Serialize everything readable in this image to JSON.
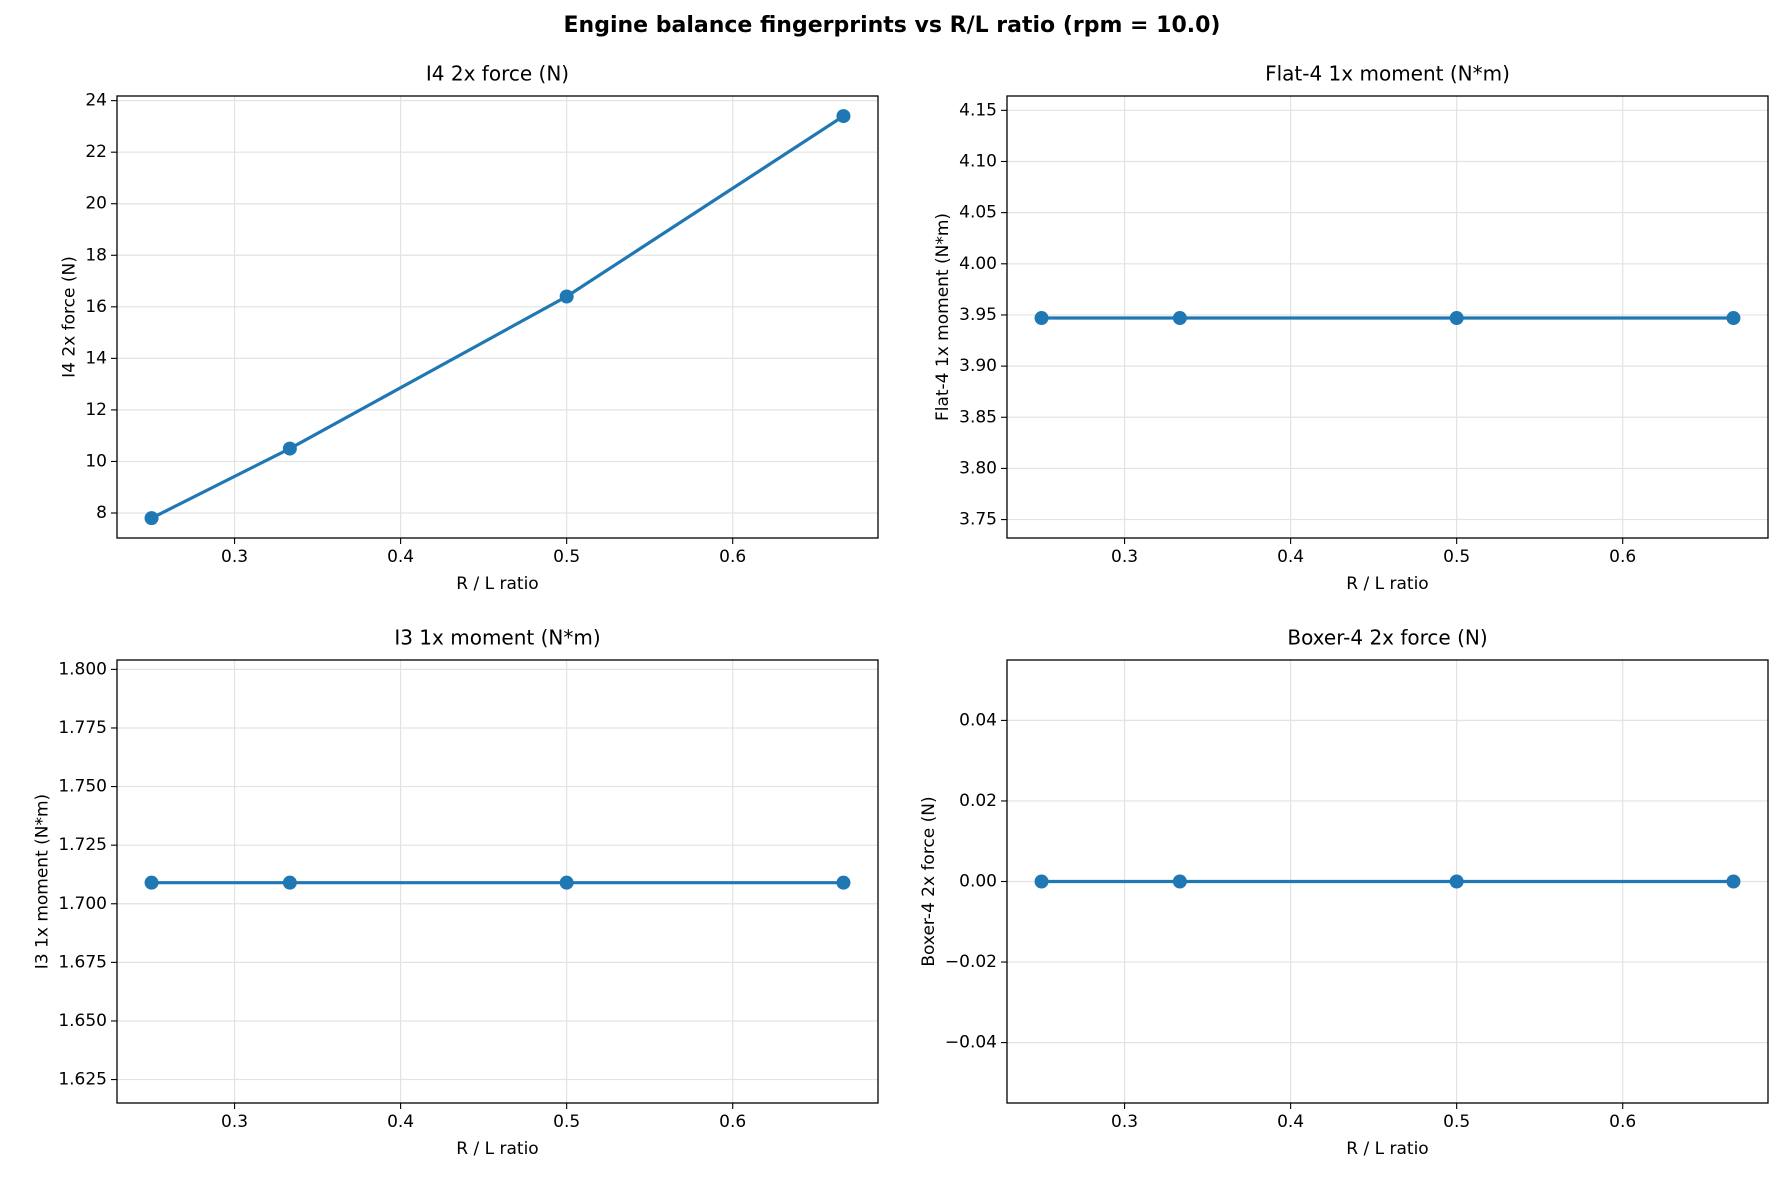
{
  "title": "Engine balance fingerprints vs R/L ratio (rpm = 10.0)",
  "chart_data": [
    {
      "type": "line",
      "title": "I4 2x force (N)",
      "xlabel": "R / L ratio",
      "ylabel": "I4 2x force (N)",
      "x": [
        0.25,
        0.3333,
        0.5,
        0.6667
      ],
      "values": [
        7.8,
        10.5,
        16.4,
        23.4
      ],
      "color": "#1f77b4",
      "xlim": [
        0.2292,
        0.6875
      ],
      "xticks": [
        0.3,
        0.4,
        0.5,
        0.6
      ],
      "ylim": [
        7.03,
        24.18
      ],
      "yticks": [
        8,
        10,
        12,
        14,
        16,
        18,
        20,
        22,
        24
      ],
      "grid": true
    },
    {
      "type": "line",
      "title": "Flat-4 1x moment (N*m)",
      "xlabel": "R / L ratio",
      "ylabel": "Flat-4 1x moment (N*m)",
      "x": [
        0.25,
        0.3333,
        0.5,
        0.6667
      ],
      "values": [
        3.947,
        3.947,
        3.947,
        3.947
      ],
      "color": "#1f77b4",
      "xlim": [
        0.2292,
        0.6875
      ],
      "xticks": [
        0.3,
        0.4,
        0.5,
        0.6
      ],
      "ylim": [
        3.732,
        4.164
      ],
      "yticks": [
        3.75,
        {
          "value": 3.8,
          "label": "3.80"
        },
        3.85,
        {
          "value": 3.9,
          "label": "3.90"
        },
        3.95,
        {
          "value": 4.0,
          "label": "4.00"
        },
        4.05,
        {
          "value": 4.1,
          "label": "4.10"
        },
        4.15
      ],
      "grid": true
    },
    {
      "type": "line",
      "title": "I3 1x moment (N*m)",
      "xlabel": "R / L ratio",
      "ylabel": "I3 1x moment (N*m)",
      "x": [
        0.25,
        0.3333,
        0.5,
        0.6667
      ],
      "values": [
        1.709,
        1.709,
        1.709,
        1.709
      ],
      "color": "#1f77b4",
      "xlim": [
        0.2292,
        0.6875
      ],
      "xticks": [
        0.3,
        0.4,
        0.5,
        0.6
      ],
      "ylim": [
        1.615,
        1.804
      ],
      "yticks": [
        1.625,
        {
          "value": 1.65,
          "label": "1.650"
        },
        1.675,
        {
          "value": 1.7,
          "label": "1.700"
        },
        1.725,
        {
          "value": 1.75,
          "label": "1.750"
        },
        1.775,
        {
          "value": 1.8,
          "label": "1.800"
        }
      ],
      "grid": true
    },
    {
      "type": "line",
      "title": "Boxer-4 2x force (N)",
      "xlabel": "R / L ratio",
      "ylabel": "Boxer-4 2x force (N)",
      "x": [
        0.25,
        0.3333,
        0.5,
        0.6667
      ],
      "values": [
        0,
        0,
        0,
        0
      ],
      "color": "#1f77b4",
      "xlim": [
        0.2292,
        0.6875
      ],
      "xticks": [
        0.3,
        0.4,
        0.5,
        0.6
      ],
      "ylim": [
        -0.055,
        0.055
      ],
      "yticks": [
        {
          "value": -0.04,
          "label": "−0.04"
        },
        {
          "value": -0.02,
          "label": "−0.02"
        },
        {
          "value": 0,
          "label": "0.00"
        },
        0.02,
        0.04
      ],
      "grid": true
    }
  ]
}
